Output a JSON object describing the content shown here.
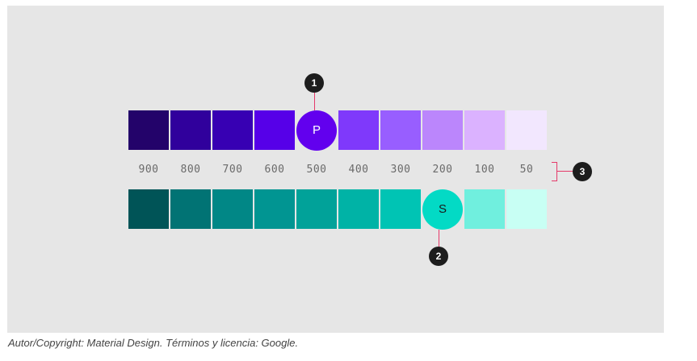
{
  "primary": {
    "swatches": [
      {
        "shade": "900",
        "color": "#23036a"
      },
      {
        "shade": "800",
        "color": "#30009c"
      },
      {
        "shade": "700",
        "color": "#3700b3"
      },
      {
        "shade": "600",
        "color": "#5600e8"
      },
      {
        "shade": "500",
        "color": "#6200ee",
        "letter": "P",
        "text_color": "#ffffff"
      },
      {
        "shade": "400",
        "color": "#7f39fb"
      },
      {
        "shade": "300",
        "color": "#985eff"
      },
      {
        "shade": "200",
        "color": "#bb86fc"
      },
      {
        "shade": "100",
        "color": "#dbb2ff"
      },
      {
        "shade": "50",
        "color": "#f2e7fe"
      }
    ]
  },
  "secondary": {
    "swatches": [
      {
        "shade": "900",
        "color": "#005457"
      },
      {
        "shade": "800",
        "color": "#017374"
      },
      {
        "shade": "700",
        "color": "#018786"
      },
      {
        "shade": "600",
        "color": "#019592"
      },
      {
        "shade": "500",
        "color": "#01a299"
      },
      {
        "shade": "400",
        "color": "#00b3a6"
      },
      {
        "shade": "300",
        "color": "#00c4b4"
      },
      {
        "shade": "200",
        "color": "#03dac5",
        "letter": "S",
        "text_color": "#1a1a1a"
      },
      {
        "shade": "100",
        "color": "#70efde"
      },
      {
        "shade": "50",
        "color": "#c8fff4"
      }
    ]
  },
  "shade_labels": [
    "900",
    "800",
    "700",
    "600",
    "500",
    "400",
    "300",
    "200",
    "100",
    "50"
  ],
  "markers": [
    "1",
    "2",
    "3"
  ],
  "accent_line_color": "#e53a6a",
  "caption": "Autor/Copyright: Material Design. Términos y licencia: Google."
}
